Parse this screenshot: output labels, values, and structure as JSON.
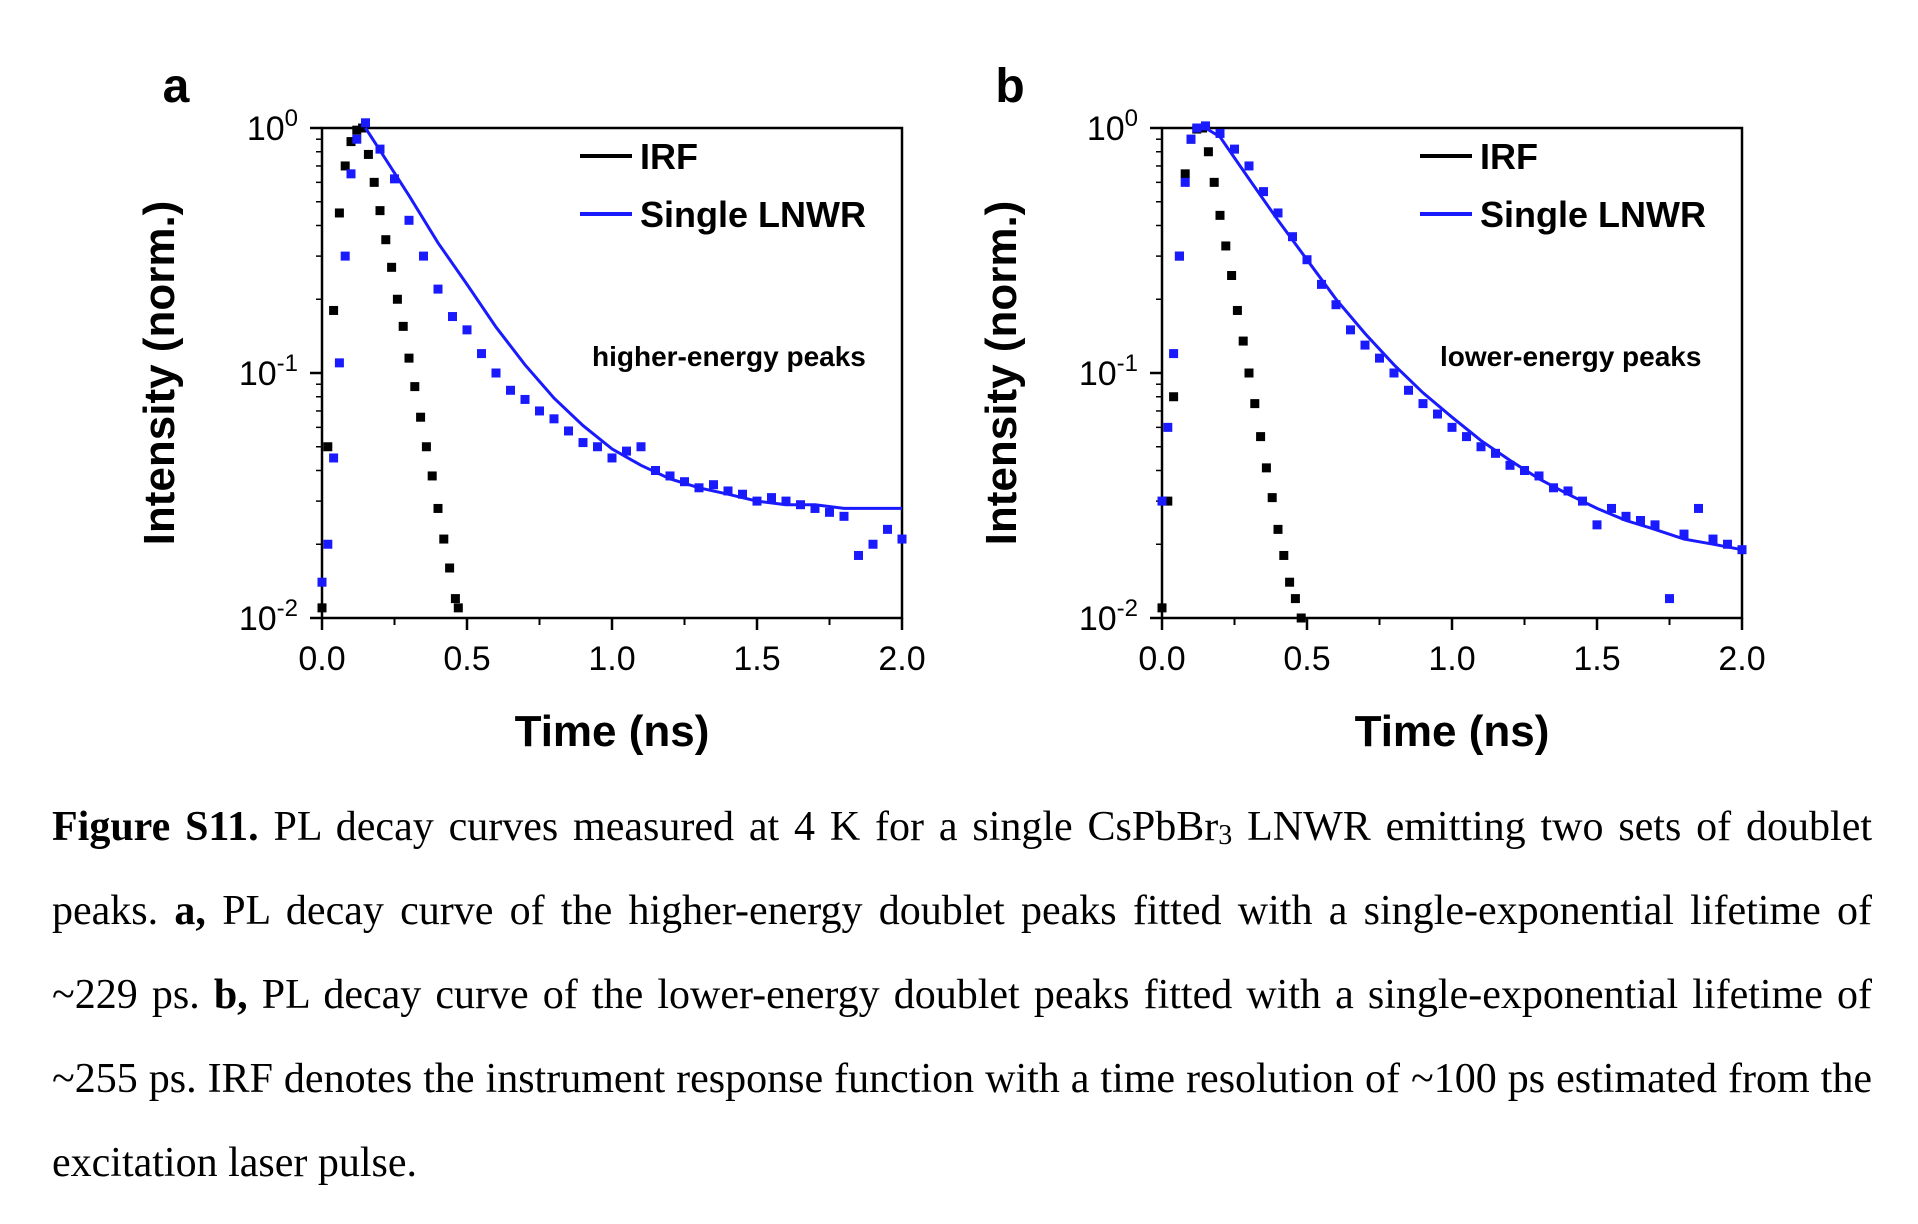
{
  "figure": {
    "label_prefix": "Figure S11.",
    "caption_1": "PL decay curves measured at 4 K for a single CsPbBr",
    "caption_sub": "3",
    "caption_2": "LNWR emitting two sets of doublet peaks.",
    "panel_a_ref": "a,",
    "caption_3": "PL decay curve of the higher-energy doublet peaks fitted with a single-exponential lifetime of ~229 ps.",
    "panel_b_ref": "b,",
    "caption_4": "PL decay curve of the lower-energy doublet peaks fitted with a single-exponential lifetime of ~255 ps. IRF denotes the instrument response function with a time resolution of ~100 ps estimated from the excitation laser pulse."
  },
  "colors": {
    "irf": "#000000",
    "signal": "#1a1aff",
    "axis": "#000000"
  },
  "chart_data": [
    {
      "type": "scatter",
      "panel_label": "a",
      "annotation": "higher-energy peaks",
      "xlabel": "Time (ns)",
      "ylabel": "Intensity (norm.)",
      "xlim": [
        0,
        2.0
      ],
      "ylim": [
        0.01,
        1
      ],
      "yscale": "log",
      "x_ticks": [
        "0.0",
        "0.5",
        "1.0",
        "1.5",
        "2.0"
      ],
      "y_ticks": [
        {
          "base": "10",
          "exp": "0"
        },
        {
          "base": "10",
          "exp": "-1"
        },
        {
          "base": "10",
          "exp": "-2"
        }
      ],
      "legend_position": "top-right",
      "series": [
        {
          "name": "IRF",
          "color": "#000000",
          "x": [
            0.0,
            0.02,
            0.04,
            0.06,
            0.08,
            0.1,
            0.12,
            0.14,
            0.16,
            0.18,
            0.2,
            0.22,
            0.24,
            0.26,
            0.28,
            0.3,
            0.32,
            0.34,
            0.36,
            0.38,
            0.4,
            0.42,
            0.44,
            0.46,
            0.47
          ],
          "y": [
            0.011,
            0.05,
            0.18,
            0.45,
            0.7,
            0.88,
            0.98,
            1.0,
            0.78,
            0.6,
            0.46,
            0.35,
            0.27,
            0.2,
            0.155,
            0.115,
            0.088,
            0.066,
            0.05,
            0.038,
            0.028,
            0.021,
            0.016,
            0.012,
            0.011
          ]
        },
        {
          "name": "Single LNWR",
          "color": "#1a1aff",
          "x": [
            0.0,
            0.02,
            0.04,
            0.06,
            0.08,
            0.1,
            0.12,
            0.15,
            0.2,
            0.25,
            0.3,
            0.35,
            0.4,
            0.45,
            0.5,
            0.55,
            0.6,
            0.65,
            0.7,
            0.75,
            0.8,
            0.85,
            0.9,
            0.95,
            1.0,
            1.05,
            1.1,
            1.15,
            1.2,
            1.25,
            1.3,
            1.35,
            1.4,
            1.45,
            1.5,
            1.55,
            1.6,
            1.65,
            1.7,
            1.75,
            1.8,
            1.85,
            1.9,
            1.95,
            2.0
          ],
          "y": [
            0.014,
            0.02,
            0.045,
            0.11,
            0.3,
            0.65,
            0.9,
            1.05,
            0.82,
            0.62,
            0.42,
            0.3,
            0.22,
            0.17,
            0.15,
            0.12,
            0.1,
            0.085,
            0.078,
            0.07,
            0.065,
            0.058,
            0.052,
            0.05,
            0.045,
            0.048,
            0.05,
            0.04,
            0.038,
            0.036,
            0.034,
            0.035,
            0.033,
            0.032,
            0.03,
            0.031,
            0.03,
            0.029,
            0.028,
            0.027,
            0.026,
            0.018,
            0.02,
            0.023,
            0.021
          ]
        },
        {
          "name": "fit",
          "color": "#1a1aff",
          "x": [
            0.15,
            0.2,
            0.3,
            0.4,
            0.5,
            0.6,
            0.7,
            0.8,
            0.9,
            1.0,
            1.1,
            1.2,
            1.3,
            1.4,
            1.5,
            1.6,
            1.7,
            1.8,
            1.9,
            2.0
          ],
          "y": [
            1.0,
            0.81,
            0.53,
            0.34,
            0.23,
            0.154,
            0.108,
            0.079,
            0.061,
            0.049,
            0.042,
            0.037,
            0.034,
            0.032,
            0.03,
            0.029,
            0.029,
            0.028,
            0.028,
            0.028
          ]
        }
      ]
    },
    {
      "type": "scatter",
      "panel_label": "b",
      "annotation": "lower-energy peaks",
      "xlabel": "Time (ns)",
      "ylabel": "Intensity (norm.)",
      "xlim": [
        0,
        2.0
      ],
      "ylim": [
        0.01,
        1
      ],
      "yscale": "log",
      "x_ticks": [
        "0.0",
        "0.5",
        "1.0",
        "1.5",
        "2.0"
      ],
      "y_ticks": [
        {
          "base": "10",
          "exp": "0"
        },
        {
          "base": "10",
          "exp": "-1"
        },
        {
          "base": "10",
          "exp": "-2"
        }
      ],
      "legend_position": "top-right",
      "series": [
        {
          "name": "IRF",
          "color": "#000000",
          "x": [
            0.0,
            0.02,
            0.04,
            0.06,
            0.08,
            0.1,
            0.12,
            0.14,
            0.16,
            0.18,
            0.2,
            0.22,
            0.24,
            0.26,
            0.28,
            0.3,
            0.32,
            0.34,
            0.36,
            0.38,
            0.4,
            0.42,
            0.44,
            0.46,
            0.48
          ],
          "y": [
            0.011,
            0.03,
            0.08,
            0.3,
            0.65,
            0.9,
            0.99,
            1.0,
            0.8,
            0.6,
            0.44,
            0.33,
            0.25,
            0.18,
            0.135,
            0.1,
            0.075,
            0.055,
            0.041,
            0.031,
            0.023,
            0.018,
            0.014,
            0.012,
            0.01
          ]
        },
        {
          "name": "Single LNWR",
          "color": "#1a1aff",
          "x": [
            0.0,
            0.02,
            0.04,
            0.06,
            0.08,
            0.1,
            0.12,
            0.15,
            0.2,
            0.25,
            0.3,
            0.35,
            0.4,
            0.45,
            0.5,
            0.55,
            0.6,
            0.65,
            0.7,
            0.75,
            0.8,
            0.85,
            0.9,
            0.95,
            1.0,
            1.05,
            1.1,
            1.15,
            1.2,
            1.25,
            1.3,
            1.35,
            1.4,
            1.45,
            1.5,
            1.55,
            1.6,
            1.65,
            1.7,
            1.75,
            1.8,
            1.85,
            1.9,
            1.95,
            2.0
          ],
          "y": [
            0.03,
            0.06,
            0.12,
            0.3,
            0.6,
            0.9,
            1.0,
            1.02,
            0.95,
            0.82,
            0.7,
            0.55,
            0.45,
            0.36,
            0.29,
            0.23,
            0.19,
            0.15,
            0.13,
            0.115,
            0.1,
            0.085,
            0.075,
            0.068,
            0.06,
            0.055,
            0.05,
            0.047,
            0.042,
            0.04,
            0.038,
            0.034,
            0.033,
            0.03,
            0.024,
            0.028,
            0.026,
            0.025,
            0.024,
            0.012,
            0.022,
            0.028,
            0.021,
            0.02,
            0.019
          ]
        },
        {
          "name": "fit",
          "color": "#1a1aff",
          "x": [
            0.15,
            0.2,
            0.3,
            0.4,
            0.5,
            0.6,
            0.7,
            0.8,
            0.9,
            1.0,
            1.1,
            1.2,
            1.3,
            1.4,
            1.5,
            1.6,
            1.7,
            1.8,
            1.9,
            2.0
          ],
          "y": [
            1.0,
            0.92,
            0.62,
            0.42,
            0.29,
            0.2,
            0.145,
            0.108,
            0.083,
            0.066,
            0.053,
            0.044,
            0.037,
            0.032,
            0.028,
            0.025,
            0.023,
            0.021,
            0.02,
            0.019
          ]
        }
      ]
    }
  ]
}
